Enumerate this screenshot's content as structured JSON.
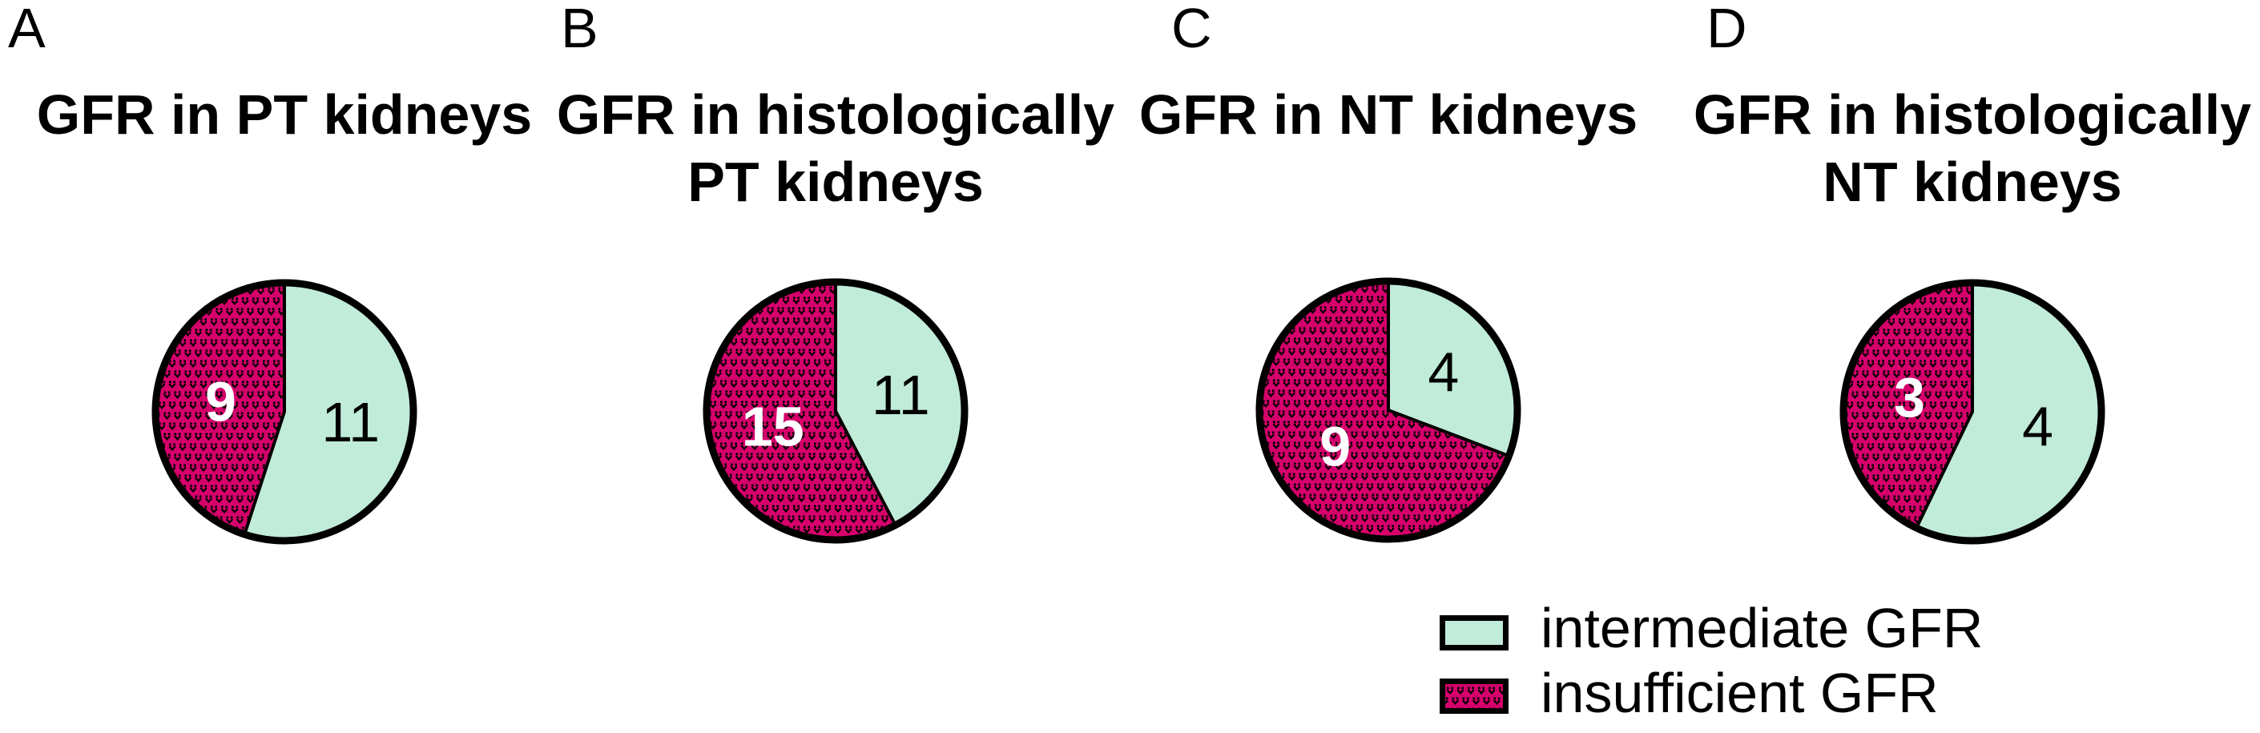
{
  "chart_data": [
    {
      "type": "pie",
      "panel": "A",
      "title": "GFR in PT kidneys",
      "title_lines": [
        "GFR in PT kidneys"
      ],
      "labels": [
        "insufficient GFR",
        "intermediate GFR"
      ],
      "values": [
        9,
        11
      ],
      "value_labels": [
        "9",
        "11"
      ],
      "start_angle": "12-o-clock",
      "insufficient_sweep": "counterclockwise"
    },
    {
      "type": "pie",
      "panel": "B",
      "title": "GFR in histologically PT kidneys",
      "title_lines": [
        "GFR in histologically",
        "PT kidneys"
      ],
      "labels": [
        "insufficient GFR",
        "intermediate GFR"
      ],
      "values": [
        15,
        11
      ],
      "value_labels": [
        "15",
        "11"
      ],
      "start_angle": "12-o-clock",
      "insufficient_sweep": "counterclockwise"
    },
    {
      "type": "pie",
      "panel": "C",
      "title": "GFR in NT kidneys",
      "title_lines": [
        "GFR in NT kidneys"
      ],
      "labels": [
        "insufficient GFR",
        "intermediate GFR"
      ],
      "values": [
        9,
        4
      ],
      "value_labels": [
        "9",
        "4"
      ],
      "start_angle": "12-o-clock",
      "insufficient_sweep": "counterclockwise"
    },
    {
      "type": "pie",
      "panel": "D",
      "title": "GFR in histologically NT kidneys",
      "title_lines": [
        "GFR in histologically",
        "NT kidneys"
      ],
      "labels": [
        "insufficient GFR",
        "intermediate GFR"
      ],
      "values": [
        3,
        4
      ],
      "value_labels": [
        "3",
        "4"
      ],
      "start_angle": "12-o-clock",
      "insufficient_sweep": "counterclockwise"
    }
  ],
  "legend": {
    "items": [
      {
        "label": "intermediate GFR",
        "key": "intermediate"
      },
      {
        "label": "insufficient GFR",
        "key": "insufficient"
      }
    ]
  },
  "colors": {
    "intermediate": "#C0ECD9",
    "insufficient": "#D5006B",
    "pattern_marks": "#000000",
    "outline": "#000000",
    "number_on_insufficient": "#FFFFFF",
    "number_on_intermediate": "#000000",
    "background": "#FFFFFF"
  }
}
